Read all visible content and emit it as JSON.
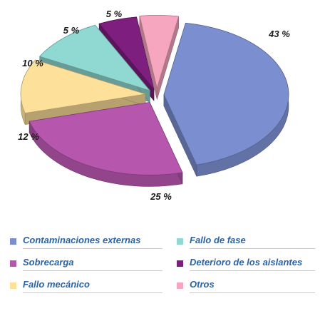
{
  "chart_data": {
    "type": "pie",
    "style": "3d-exploded",
    "categories": [
      "Contaminaciones externas",
      "Sobrecarga",
      "Fallo mecánico",
      "Fallo de fase",
      "Deterioro de los aislantes",
      "Otros"
    ],
    "values": [
      43,
      25,
      12,
      10,
      5,
      5
    ],
    "value_labels": [
      "43 %",
      "25 %",
      "12 %",
      "10 %",
      "5 %",
      "5 %"
    ],
    "colors": [
      "#7b8fd0",
      "#b656ad",
      "#fde09a",
      "#8fd9d2",
      "#7e1e7e",
      "#f7a6bf"
    ],
    "legend_placement": "bottom"
  }
}
